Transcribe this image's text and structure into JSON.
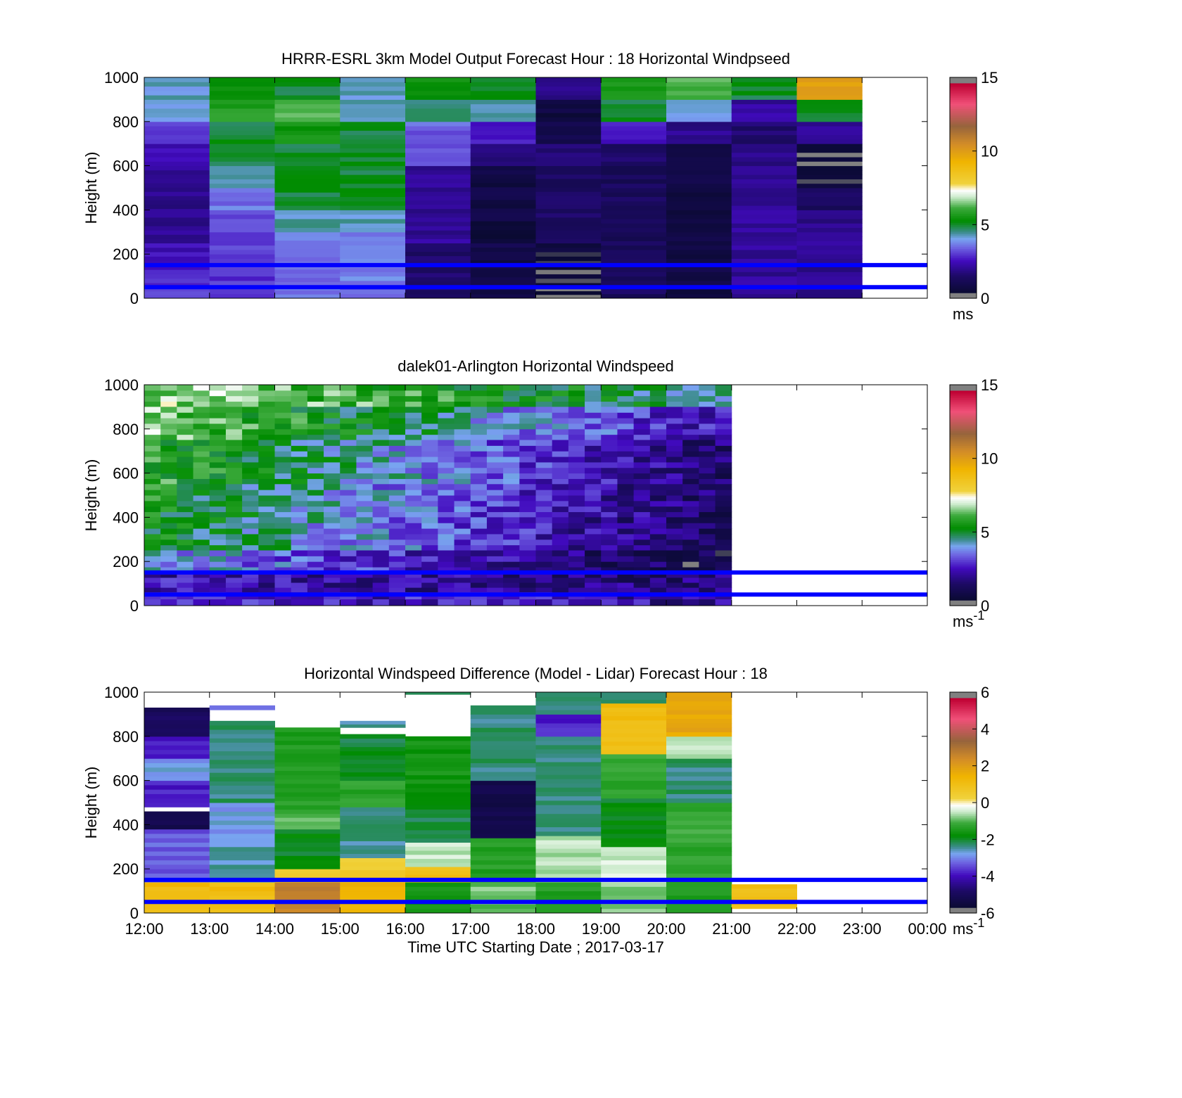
{
  "chart_data": [
    {
      "type": "heatmap",
      "title": "HRRR-ESRL 3km Model Output   Forecast Hour : 18 Horizontal Windpseed",
      "ylabel": "Height (m)",
      "yticks": [
        "0",
        "200",
        "400",
        "600",
        "800",
        "1000"
      ],
      "ylim": [
        0,
        1000
      ],
      "xlim_hours": [
        12,
        24
      ],
      "colorbar": {
        "ticks": [
          "0",
          "5",
          "10",
          "15"
        ],
        "range": [
          0,
          15
        ],
        "unit": "ms",
        "unit_sup": ""
      },
      "reference_lines_m": [
        150,
        50
      ],
      "data_x_end_hours": 23,
      "cells": [
        {
          "x0": 12,
          "x1": 13,
          "y0": 0,
          "y1": 15,
          "v": 3.5
        },
        {
          "x0": 12,
          "x1": 13,
          "y0": 15,
          "y1": 50,
          "v": 3
        },
        {
          "x0": 12,
          "x1": 13,
          "y0": 50,
          "y1": 130,
          "v": 3
        },
        {
          "x0": 12,
          "x1": 13,
          "y0": 130,
          "y1": 250,
          "v": 2.5
        },
        {
          "x0": 12,
          "x1": 13,
          "y0": 250,
          "y1": 600,
          "v": 2
        },
        {
          "x0": 12,
          "x1": 13,
          "y0": 600,
          "y1": 700,
          "v": 2.4
        },
        {
          "x0": 12,
          "x1": 13,
          "y0": 700,
          "y1": 800,
          "v": 2.9
        },
        {
          "x0": 12,
          "x1": 13,
          "y0": 800,
          "y1": 1000,
          "v": 4.2
        },
        {
          "x0": 13,
          "x1": 14,
          "y0": 0,
          "y1": 300,
          "v": 3
        },
        {
          "x0": 13,
          "x1": 14,
          "y0": 300,
          "y1": 400,
          "v": 3.3
        },
        {
          "x0": 13,
          "x1": 14,
          "y0": 400,
          "y1": 500,
          "v": 3.6
        },
        {
          "x0": 13,
          "x1": 14,
          "y0": 500,
          "y1": 600,
          "v": 4.2
        },
        {
          "x0": 13,
          "x1": 14,
          "y0": 600,
          "y1": 700,
          "v": 4.9
        },
        {
          "x0": 13,
          "x1": 14,
          "y0": 700,
          "y1": 800,
          "v": 5
        },
        {
          "x0": 13,
          "x1": 14,
          "y0": 800,
          "y1": 900,
          "v": 5.8
        },
        {
          "x0": 13,
          "x1": 14,
          "y0": 900,
          "y1": 1000,
          "v": 5.4
        },
        {
          "x0": 14,
          "x1": 15,
          "y0": 0,
          "y1": 150,
          "v": 3.5
        },
        {
          "x0": 14,
          "x1": 15,
          "y0": 150,
          "y1": 300,
          "v": 3.6
        },
        {
          "x0": 14,
          "x1": 15,
          "y0": 300,
          "y1": 400,
          "v": 4.3
        },
        {
          "x0": 14,
          "x1": 15,
          "y0": 400,
          "y1": 700,
          "v": 5
        },
        {
          "x0": 14,
          "x1": 15,
          "y0": 700,
          "y1": 800,
          "v": 5.5
        },
        {
          "x0": 14,
          "x1": 15,
          "y0": 800,
          "y1": 900,
          "v": 6.2
        },
        {
          "x0": 14,
          "x1": 15,
          "y0": 900,
          "y1": 1000,
          "v": 5
        },
        {
          "x0": 15,
          "x1": 16,
          "y0": 0,
          "y1": 60,
          "v": 3.5
        },
        {
          "x0": 15,
          "x1": 16,
          "y0": 60,
          "y1": 300,
          "v": 3.7
        },
        {
          "x0": 15,
          "x1": 16,
          "y0": 300,
          "y1": 400,
          "v": 4.3
        },
        {
          "x0": 15,
          "x1": 16,
          "y0": 400,
          "y1": 800,
          "v": 5
        },
        {
          "x0": 15,
          "x1": 16,
          "y0": 800,
          "y1": 900,
          "v": 4.5
        },
        {
          "x0": 15,
          "x1": 16,
          "y0": 900,
          "y1": 1000,
          "v": 4.2
        },
        {
          "x0": 16,
          "x1": 17,
          "y0": 0,
          "y1": 250,
          "v": 1.5
        },
        {
          "x0": 16,
          "x1": 17,
          "y0": 250,
          "y1": 600,
          "v": 2.1
        },
        {
          "x0": 16,
          "x1": 17,
          "y0": 600,
          "y1": 700,
          "v": 3.2
        },
        {
          "x0": 16,
          "x1": 17,
          "y0": 700,
          "y1": 800,
          "v": 3.4
        },
        {
          "x0": 16,
          "x1": 17,
          "y0": 800,
          "y1": 900,
          "v": 4.8
        },
        {
          "x0": 16,
          "x1": 17,
          "y0": 900,
          "y1": 1000,
          "v": 5.4
        },
        {
          "x0": 17,
          "x1": 18,
          "y0": 0,
          "y1": 250,
          "v": 0.9
        },
        {
          "x0": 17,
          "x1": 18,
          "y0": 250,
          "y1": 350,
          "v": 0.3
        },
        {
          "x0": 17,
          "x1": 18,
          "y0": 350,
          "y1": 600,
          "v": 0.8
        },
        {
          "x0": 17,
          "x1": 18,
          "y0": 600,
          "y1": 700,
          "v": 1.8
        },
        {
          "x0": 17,
          "x1": 18,
          "y0": 700,
          "y1": 800,
          "v": 2.7
        },
        {
          "x0": 17,
          "x1": 18,
          "y0": 800,
          "y1": 900,
          "v": 4.3
        },
        {
          "x0": 17,
          "x1": 18,
          "y0": 900,
          "y1": 1000,
          "v": 5
        },
        {
          "x0": 18,
          "x1": 19,
          "y0": 0,
          "y1": 50,
          "v": 0.3
        },
        {
          "x0": 18,
          "x1": 19,
          "y0": 50,
          "y1": 250,
          "v": 0.6
        },
        {
          "x0": 18,
          "x1": 19,
          "y0": 250,
          "y1": 600,
          "v": 1.4
        },
        {
          "x0": 18,
          "x1": 19,
          "y0": 600,
          "y1": 700,
          "v": 1.6
        },
        {
          "x0": 18,
          "x1": 19,
          "y0": 700,
          "y1": 800,
          "v": 1
        },
        {
          "x0": 18,
          "x1": 19,
          "y0": 800,
          "y1": 900,
          "v": 0.7
        },
        {
          "x0": 18,
          "x1": 19,
          "y0": 900,
          "y1": 1000,
          "v": 2
        },
        {
          "x0": 19,
          "x1": 20,
          "y0": 0,
          "y1": 600,
          "v": 1.3
        },
        {
          "x0": 19,
          "x1": 20,
          "y0": 600,
          "y1": 700,
          "v": 1.5
        },
        {
          "x0": 19,
          "x1": 20,
          "y0": 700,
          "y1": 800,
          "v": 2.7
        },
        {
          "x0": 19,
          "x1": 20,
          "y0": 800,
          "y1": 900,
          "v": 5
        },
        {
          "x0": 19,
          "x1": 20,
          "y0": 900,
          "y1": 1000,
          "v": 5.7
        },
        {
          "x0": 20,
          "x1": 21,
          "y0": 0,
          "y1": 600,
          "v": 0.8
        },
        {
          "x0": 20,
          "x1": 21,
          "y0": 600,
          "y1": 700,
          "v": 0.7
        },
        {
          "x0": 20,
          "x1": 21,
          "y0": 700,
          "y1": 800,
          "v": 2
        },
        {
          "x0": 20,
          "x1": 21,
          "y0": 800,
          "y1": 900,
          "v": 4.1
        },
        {
          "x0": 20,
          "x1": 21,
          "y0": 900,
          "y1": 1000,
          "v": 6.2
        },
        {
          "x0": 21,
          "x1": 22,
          "y0": 0,
          "y1": 600,
          "v": 2.1
        },
        {
          "x0": 21,
          "x1": 22,
          "y0": 600,
          "y1": 700,
          "v": 1.9
        },
        {
          "x0": 21,
          "x1": 22,
          "y0": 700,
          "y1": 800,
          "v": 1.6
        },
        {
          "x0": 21,
          "x1": 22,
          "y0": 800,
          "y1": 900,
          "v": 2.2
        },
        {
          "x0": 21,
          "x1": 22,
          "y0": 900,
          "y1": 1000,
          "v": 5
        },
        {
          "x0": 22,
          "x1": 23,
          "y0": 0,
          "y1": 400,
          "v": 2
        },
        {
          "x0": 22,
          "x1": 23,
          "y0": 400,
          "y1": 500,
          "v": 1.4
        },
        {
          "x0": 22,
          "x1": 23,
          "y0": 500,
          "y1": 600,
          "v": 0.6
        },
        {
          "x0": 22,
          "x1": 23,
          "y0": 600,
          "y1": 700,
          "v": 0.3
        },
        {
          "x0": 22,
          "x1": 23,
          "y0": 700,
          "y1": 800,
          "v": 2.1
        },
        {
          "x0": 22,
          "x1": 23,
          "y0": 800,
          "y1": 900,
          "v": 5
        },
        {
          "x0": 22,
          "x1": 23,
          "y0": 900,
          "y1": 1000,
          "v": 10
        }
      ]
    },
    {
      "type": "heatmap",
      "title": "dalek01-Arlington  Horizontal Windspeed",
      "ylabel": "Height (m)",
      "yticks": [
        "0",
        "200",
        "400",
        "600",
        "800",
        "1000"
      ],
      "ylim": [
        0,
        1000
      ],
      "xlim_hours": [
        12,
        24
      ],
      "colorbar": {
        "ticks": [
          "0",
          "5",
          "10",
          "15"
        ],
        "range": [
          0,
          15
        ],
        "unit": "ms",
        "unit_sup": "-1"
      },
      "reference_lines_m": [
        150,
        50
      ],
      "data_x_end_hours": 21,
      "columns_per_hour": 4,
      "profiles": [
        {
          "x0": 12,
          "x1": 21,
          "y0": 900,
          "y1": 1000,
          "v0": 6.8,
          "v1": 4.5
        },
        {
          "x0": 12,
          "x1": 21,
          "y0": 750,
          "y1": 900,
          "v0": 6.6,
          "v1": 2.4
        },
        {
          "x0": 12,
          "x1": 21,
          "y0": 550,
          "y1": 750,
          "v0": 5.9,
          "v1": 1.6
        },
        {
          "x0": 12,
          "x1": 21,
          "y0": 400,
          "y1": 550,
          "v0": 5.4,
          "v1": 1.4
        },
        {
          "x0": 12,
          "x1": 21,
          "y0": 250,
          "y1": 400,
          "v0": 5.3,
          "v1": 1.2
        },
        {
          "x0": 12,
          "x1": 21,
          "y0": 150,
          "y1": 250,
          "v0": 4.2,
          "v1": 0.8
        },
        {
          "x0": 12,
          "x1": 21,
          "y0": 60,
          "y1": 150,
          "v0": 2.4,
          "v1": 1.6
        },
        {
          "x0": 12,
          "x1": 21,
          "y0": 0,
          "y1": 60,
          "v0": 2.8,
          "v1": 2.2
        }
      ]
    },
    {
      "type": "heatmap",
      "title": "Horizontal Windspeed Difference (Model - Lidar) Forecast Hour : 18",
      "xlabel": "Time UTC  Starting Date ; 2017-03-17",
      "ylabel": "Height (m)",
      "xticks": [
        "12:00",
        "13:00",
        "14:00",
        "15:00",
        "16:00",
        "17:00",
        "18:00",
        "19:00",
        "20:00",
        "21:00",
        "22:00",
        "23:00",
        "00:00"
      ],
      "yticks": [
        "0",
        "200",
        "400",
        "600",
        "800",
        "1000"
      ],
      "ylim": [
        0,
        1000
      ],
      "xlim_hours": [
        12,
        24
      ],
      "colorbar": {
        "ticks": [
          "-6",
          "-4",
          "-2",
          "0",
          "2",
          "4",
          "6"
        ],
        "range": [
          -6,
          6
        ],
        "unit": "ms",
        "unit_sup": "-1"
      },
      "reference_lines_m": [
        150,
        50
      ],
      "data_x_end_hours": 22,
      "cells": [
        {
          "x0": 12,
          "x1": 13,
          "y0": 0,
          "y1": 140,
          "v": 1.2
        },
        {
          "x0": 12,
          "x1": 13,
          "y0": 140,
          "y1": 380,
          "v": -3.3
        },
        {
          "x0": 12,
          "x1": 13,
          "y0": 380,
          "y1": 460,
          "v": -5.1
        },
        {
          "x0": 12,
          "x1": 13,
          "y0": 480,
          "y1": 600,
          "v": -3.8
        },
        {
          "x0": 12,
          "x1": 13,
          "y0": 600,
          "y1": 700,
          "v": -2.8
        },
        {
          "x0": 12,
          "x1": 13,
          "y0": 700,
          "y1": 800,
          "v": -3.9
        },
        {
          "x0": 12,
          "x1": 13,
          "y0": 800,
          "y1": 930,
          "v": -5
        },
        {
          "x0": 13,
          "x1": 14,
          "y0": 0,
          "y1": 140,
          "v": 1.1
        },
        {
          "x0": 13,
          "x1": 14,
          "y0": 140,
          "y1": 300,
          "v": -2.5
        },
        {
          "x0": 13,
          "x1": 14,
          "y0": 300,
          "y1": 500,
          "v": -2.8
        },
        {
          "x0": 13,
          "x1": 14,
          "y0": 500,
          "y1": 870,
          "v": -2.3
        },
        {
          "x0": 13,
          "x1": 14,
          "y0": 920,
          "y1": 940,
          "v": -3.3
        },
        {
          "x0": 14,
          "x1": 15,
          "y0": 0,
          "y1": 140,
          "v": 2.6
        },
        {
          "x0": 14,
          "x1": 15,
          "y0": 140,
          "y1": 200,
          "v": 0.6
        },
        {
          "x0": 14,
          "x1": 15,
          "y0": 200,
          "y1": 380,
          "v": -1.9
        },
        {
          "x0": 14,
          "x1": 15,
          "y0": 380,
          "y1": 450,
          "v": -0.9
        },
        {
          "x0": 14,
          "x1": 15,
          "y0": 450,
          "y1": 840,
          "v": -1.4
        },
        {
          "x0": 15,
          "x1": 16,
          "y0": 0,
          "y1": 140,
          "v": 1.4
        },
        {
          "x0": 15,
          "x1": 16,
          "y0": 140,
          "y1": 250,
          "v": 0.5
        },
        {
          "x0": 15,
          "x1": 16,
          "y0": 250,
          "y1": 480,
          "v": -2.4
        },
        {
          "x0": 15,
          "x1": 16,
          "y0": 480,
          "y1": 600,
          "v": -1.3
        },
        {
          "x0": 15,
          "x1": 16,
          "y0": 600,
          "y1": 810,
          "v": -2
        },
        {
          "x0": 15,
          "x1": 16,
          "y0": 840,
          "y1": 870,
          "v": -2.4
        },
        {
          "x0": 16,
          "x1": 17,
          "y0": 0,
          "y1": 140,
          "v": -1.5
        },
        {
          "x0": 16,
          "x1": 17,
          "y0": 140,
          "y1": 210,
          "v": 1
        },
        {
          "x0": 16,
          "x1": 17,
          "y0": 210,
          "y1": 320,
          "v": -0.5
        },
        {
          "x0": 16,
          "x1": 17,
          "y0": 320,
          "y1": 470,
          "v": -2.2
        },
        {
          "x0": 16,
          "x1": 17,
          "y0": 470,
          "y1": 800,
          "v": -1.6
        },
        {
          "x0": 16,
          "x1": 17,
          "y0": 990,
          "y1": 1000,
          "v": -2
        },
        {
          "x0": 17,
          "x1": 18,
          "y0": 0,
          "y1": 140,
          "v": -0.9
        },
        {
          "x0": 17,
          "x1": 18,
          "y0": 140,
          "y1": 340,
          "v": -1.3
        },
        {
          "x0": 17,
          "x1": 18,
          "y0": 340,
          "y1": 600,
          "v": -5.3
        },
        {
          "x0": 17,
          "x1": 18,
          "y0": 600,
          "y1": 940,
          "v": -2.3
        },
        {
          "x0": 18,
          "x1": 19,
          "y0": 0,
          "y1": 140,
          "v": -1.3
        },
        {
          "x0": 18,
          "x1": 19,
          "y0": 140,
          "y1": 350,
          "v": -0.6
        },
        {
          "x0": 18,
          "x1": 19,
          "y0": 350,
          "y1": 550,
          "v": -2.3
        },
        {
          "x0": 18,
          "x1": 19,
          "y0": 550,
          "y1": 800,
          "v": -2.4
        },
        {
          "x0": 18,
          "x1": 19,
          "y0": 800,
          "y1": 900,
          "v": -3.8
        },
        {
          "x0": 18,
          "x1": 19,
          "y0": 900,
          "y1": 1000,
          "v": -2.3
        },
        {
          "x0": 19,
          "x1": 20,
          "y0": 0,
          "y1": 140,
          "v": -0.8
        },
        {
          "x0": 19,
          "x1": 20,
          "y0": 140,
          "y1": 300,
          "v": -0.4
        },
        {
          "x0": 19,
          "x1": 20,
          "y0": 300,
          "y1": 520,
          "v": -1.9
        },
        {
          "x0": 19,
          "x1": 20,
          "y0": 520,
          "y1": 720,
          "v": -1.2
        },
        {
          "x0": 19,
          "x1": 20,
          "y0": 720,
          "y1": 950,
          "v": 1.1
        },
        {
          "x0": 19,
          "x1": 20,
          "y0": 950,
          "y1": 1000,
          "v": -2.3
        },
        {
          "x0": 20,
          "x1": 21,
          "y0": 0,
          "y1": 140,
          "v": -1.5
        },
        {
          "x0": 20,
          "x1": 21,
          "y0": 140,
          "y1": 500,
          "v": -1.2
        },
        {
          "x0": 20,
          "x1": 21,
          "y0": 500,
          "y1": 700,
          "v": -2.3
        },
        {
          "x0": 20,
          "x1": 21,
          "y0": 700,
          "y1": 800,
          "v": -0.5
        },
        {
          "x0": 20,
          "x1": 21,
          "y0": 800,
          "y1": 1000,
          "v": 1.7
        },
        {
          "x0": 21,
          "x1": 22,
          "y0": 20,
          "y1": 130,
          "v": 1
        }
      ]
    }
  ]
}
